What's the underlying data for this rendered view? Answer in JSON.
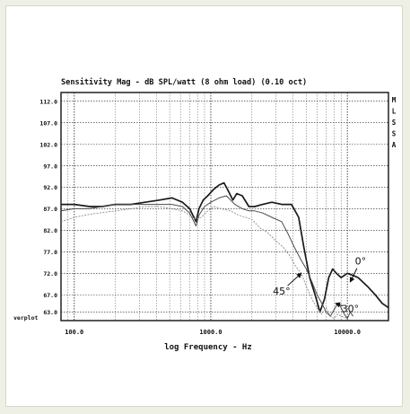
{
  "chart_data": {
    "type": "line",
    "title": "Sensitivity Mag - dB SPL/watt (8 ohm load) (0.10 oct)",
    "side_label": [
      "M",
      "L",
      "S",
      "S",
      "A"
    ],
    "xlabel": "log Frequency - Hz",
    "ylabel": "",
    "corner_label": "verplot",
    "x_scale": "log",
    "xlim": [
      80,
      20000
    ],
    "ylim": [
      61,
      114
    ],
    "x_ticks": [
      {
        "value": 100,
        "label": "100.0"
      },
      {
        "value": 1000,
        "label": "1000.0"
      },
      {
        "value": 10000,
        "label": "10000.0"
      }
    ],
    "y_ticks": [
      {
        "value": 112,
        "label": "112.0"
      },
      {
        "value": 107,
        "label": "107.0"
      },
      {
        "value": 102,
        "label": "102.0"
      },
      {
        "value": 97,
        "label": "97.0"
      },
      {
        "value": 92,
        "label": "92.0"
      },
      {
        "value": 87,
        "label": "87.0"
      },
      {
        "value": 82,
        "label": "82.0"
      },
      {
        "value": 77,
        "label": "77.0"
      },
      {
        "value": 72,
        "label": "72.0"
      },
      {
        "value": 67,
        "label": "67.0"
      },
      {
        "value": 63,
        "label": "63.0"
      }
    ],
    "grid": true,
    "series": [
      {
        "name": "0°",
        "color": "#1a1a1a",
        "x": [
          80,
          100,
          130,
          160,
          200,
          260,
          330,
          420,
          520,
          620,
          700,
          780,
          820,
          880,
          950,
          1050,
          1150,
          1250,
          1350,
          1450,
          1550,
          1700,
          1900,
          2100,
          2400,
          2800,
          3300,
          3900,
          4400,
          4800,
          5300,
          5800,
          6300,
          6800,
          7300,
          7800,
          8300,
          9000,
          10000,
          11000,
          12000,
          14000,
          16000,
          18000,
          20000
        ],
        "y": [
          88,
          88,
          87.5,
          87.5,
          88,
          88,
          88.5,
          89,
          89.5,
          88.5,
          87,
          84,
          87,
          89,
          90,
          91.5,
          92.5,
          93,
          91,
          89,
          90.5,
          90,
          87.5,
          87.5,
          88,
          88.5,
          88,
          88,
          85,
          78,
          71,
          67,
          63,
          66,
          71,
          73,
          72,
          71,
          72,
          71.5,
          71,
          69,
          67,
          65,
          64
        ]
      },
      {
        "name": "30°",
        "color": "#4a4a4a",
        "x": [
          80,
          100,
          130,
          160,
          200,
          260,
          330,
          420,
          520,
          620,
          700,
          780,
          820,
          900,
          1000,
          1150,
          1300,
          1500,
          1700,
          1900,
          2100,
          2400,
          2800,
          3300,
          3700,
          4100,
          4600,
          5000,
          5500,
          6000,
          6500,
          7000,
          7500,
          8000,
          8500,
          9000,
          9500,
          10000,
          10500,
          11000
        ],
        "y": [
          86.5,
          87,
          87,
          87.5,
          88,
          88,
          88,
          88,
          88,
          87.5,
          86,
          83,
          85.5,
          87.5,
          88.5,
          89.5,
          90,
          88,
          87,
          86.5,
          86.5,
          86,
          85,
          84,
          81,
          78,
          75,
          73,
          70,
          67,
          65,
          63,
          62,
          63.5,
          65,
          64,
          62.5,
          61.5,
          63,
          62
        ]
      },
      {
        "name": "45°",
        "color": "#8c8c8c",
        "x": [
          80,
          90,
          100,
          120,
          150,
          200,
          260,
          330,
          420,
          520,
          620,
          700,
          780,
          850,
          950,
          1050,
          1200,
          1400,
          1600,
          1800,
          2000,
          2300,
          2600,
          3000,
          3400,
          3800,
          4200,
          4600,
          5000,
          5500,
          6000,
          6500,
          7000,
          7500,
          8000,
          8500,
          9000,
          10000
        ],
        "y": [
          84,
          84.5,
          85,
          85.5,
          86,
          86.5,
          87,
          87.5,
          87.5,
          87,
          86.5,
          85.5,
          84.5,
          85,
          86.5,
          87.5,
          87,
          86.5,
          85.5,
          85,
          84.5,
          82.5,
          81.5,
          79.5,
          78,
          76,
          73.5,
          72,
          69,
          66,
          64,
          62.5,
          64,
          62,
          61.5,
          62.5,
          62,
          61.5
        ]
      }
    ],
    "annotations": [
      {
        "text": "0°",
        "at": [
          12500,
          74
        ],
        "arrow_to": [
          10500,
          70
        ]
      },
      {
        "text": "30°",
        "at": [
          10500,
          63
        ],
        "arrow_to": [
          8200,
          65
        ]
      },
      {
        "text": "45°",
        "at": [
          3300,
          67
        ],
        "arrow_to": [
          4600,
          72
        ]
      }
    ]
  }
}
